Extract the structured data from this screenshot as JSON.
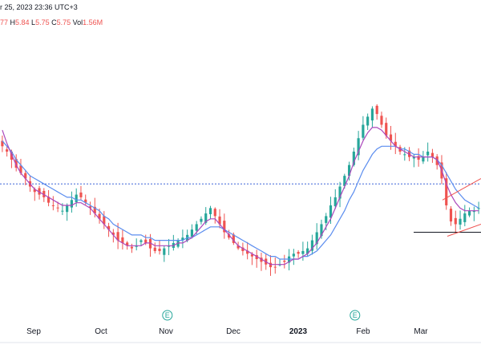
{
  "header": {
    "date_text": "r 25, 2023 23:36 UTC+3",
    "ohlc": [
      {
        "label": "",
        "value": "77"
      },
      {
        "label": "H",
        "value": "5.84"
      },
      {
        "label": "L",
        "value": "5.75"
      },
      {
        "label": "C",
        "value": "5.75"
      },
      {
        "label": "Vol",
        "value": "1.56M"
      }
    ]
  },
  "colors": {
    "up": "#26a69a",
    "down": "#ef5350",
    "ma_fast": "#ab47bc",
    "ma_slow": "#5b8def",
    "priceline": "#3d63d8",
    "support": "#131722",
    "channel": "#ef5350",
    "earnings": "#26a69a"
  },
  "icons": {
    "earnings": "earnings-E-badge-icon"
  },
  "chart_data": {
    "type": "candlestick",
    "grid": false,
    "xlabel": "",
    "ylabel": "",
    "ylim": [
      0,
      100
    ],
    "x_ticks": [
      {
        "label": "Sep",
        "x": 0.07,
        "bold": false
      },
      {
        "label": "Oct",
        "x": 0.21,
        "bold": false
      },
      {
        "label": "Nov",
        "x": 0.345,
        "bold": false
      },
      {
        "label": "Dec",
        "x": 0.485,
        "bold": false
      },
      {
        "label": "2023",
        "x": 0.62,
        "bold": true
      },
      {
        "label": "Feb",
        "x": 0.755,
        "bold": false
      },
      {
        "label": "Mar",
        "x": 0.875,
        "bold": false
      }
    ],
    "earnings_markers": [
      {
        "label": "E",
        "x": 0.348
      },
      {
        "label": "E",
        "x": 0.738
      }
    ],
    "note": "price values are relative (0-100 of visible range); price axis not visible in screenshot",
    "closes": [
      62,
      60,
      57,
      54,
      52,
      50,
      47,
      45,
      44,
      43,
      41,
      40,
      39,
      38,
      40,
      42,
      44,
      43,
      41,
      39,
      37,
      35,
      33,
      31,
      29,
      27,
      26,
      25,
      24,
      25,
      27,
      26,
      24,
      23,
      23,
      24,
      25,
      26,
      27,
      28,
      29,
      31,
      33,
      35,
      37,
      39,
      36,
      33,
      30,
      28,
      26,
      24,
      23,
      22,
      21,
      20,
      19,
      18,
      17,
      17,
      18,
      19,
      21,
      22,
      22,
      23,
      24,
      27,
      30,
      33,
      36,
      40,
      43,
      47,
      51,
      55,
      60,
      65,
      70,
      73,
      76,
      74,
      70,
      66,
      64,
      62,
      60,
      59,
      58,
      58,
      57,
      58,
      60,
      58,
      55,
      50,
      40,
      34,
      33,
      35,
      37,
      38,
      38,
      39
    ],
    "ma_fast": [
      68,
      63,
      59,
      55,
      52,
      50,
      48,
      46,
      45,
      44,
      43,
      42,
      41,
      40,
      40,
      40,
      41,
      41,
      40,
      39,
      37,
      35,
      33,
      31,
      29,
      27,
      26,
      25,
      25,
      25,
      25,
      26,
      26,
      25,
      25,
      25,
      25,
      25,
      26,
      26,
      27,
      28,
      30,
      32,
      34,
      35,
      35,
      33,
      31,
      29,
      27,
      25,
      24,
      23,
      22,
      21,
      20,
      19,
      18,
      18,
      18,
      18,
      19,
      20,
      20,
      21,
      22,
      24,
      26,
      29,
      32,
      35,
      39,
      43,
      47,
      51,
      56,
      60,
      64,
      67,
      69,
      69,
      68,
      66,
      64,
      62,
      61,
      60,
      59,
      58,
      58,
      58,
      58,
      58,
      57,
      53,
      48,
      44,
      41,
      39,
      38,
      38,
      38,
      38
    ],
    "ma_slow": [
      64,
      62,
      60,
      57,
      55,
      53,
      51,
      50,
      49,
      48,
      47,
      46,
      45,
      44,
      43,
      43,
      42,
      42,
      41,
      40,
      39,
      38,
      36,
      35,
      33,
      32,
      31,
      30,
      29,
      29,
      29,
      28,
      28,
      27,
      27,
      27,
      27,
      27,
      27,
      27,
      28,
      28,
      29,
      30,
      31,
      32,
      32,
      32,
      31,
      30,
      29,
      28,
      27,
      26,
      25,
      24,
      23,
      22,
      21,
      21,
      20,
      20,
      20,
      20,
      20,
      21,
      21,
      22,
      23,
      25,
      27,
      29,
      32,
      35,
      38,
      42,
      45,
      49,
      53,
      56,
      59,
      61,
      62,
      62,
      62,
      62,
      61,
      61,
      60,
      59,
      59,
      58,
      58,
      58,
      57,
      55,
      52,
      49,
      46,
      44,
      42,
      41,
      40,
      39
    ],
    "price_line": 48,
    "support_level": 30
  }
}
